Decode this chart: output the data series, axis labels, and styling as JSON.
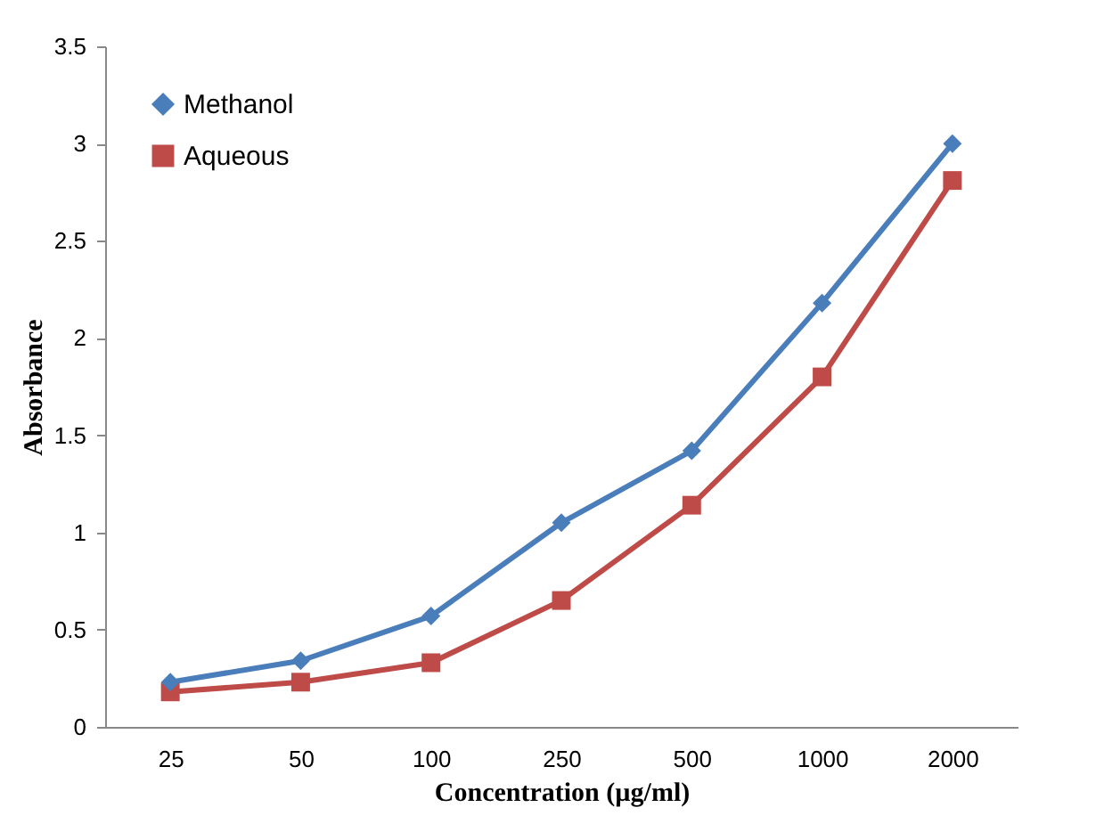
{
  "chart_data": {
    "type": "line",
    "xlabel": "Concentration (µg/ml)",
    "ylabel": "Absorbance",
    "categories": [
      "25",
      "50",
      "100",
      "250",
      "500",
      "1000",
      "2000"
    ],
    "series": [
      {
        "name": "Methanol",
        "color": "#4a7ebb",
        "marker": "diamond",
        "values": [
          0.23,
          0.34,
          0.57,
          1.05,
          1.42,
          2.18,
          3.0
        ]
      },
      {
        "name": "Aqueous",
        "color": "#be4b48",
        "marker": "square",
        "values": [
          0.18,
          0.23,
          0.33,
          0.65,
          1.14,
          1.8,
          2.81
        ]
      }
    ],
    "ylim": [
      0,
      3.5
    ],
    "yticks": [
      0,
      0.5,
      1,
      1.5,
      2,
      2.5,
      3,
      3.5
    ],
    "grid": false,
    "legend": "top left",
    "line_style": "solid"
  }
}
